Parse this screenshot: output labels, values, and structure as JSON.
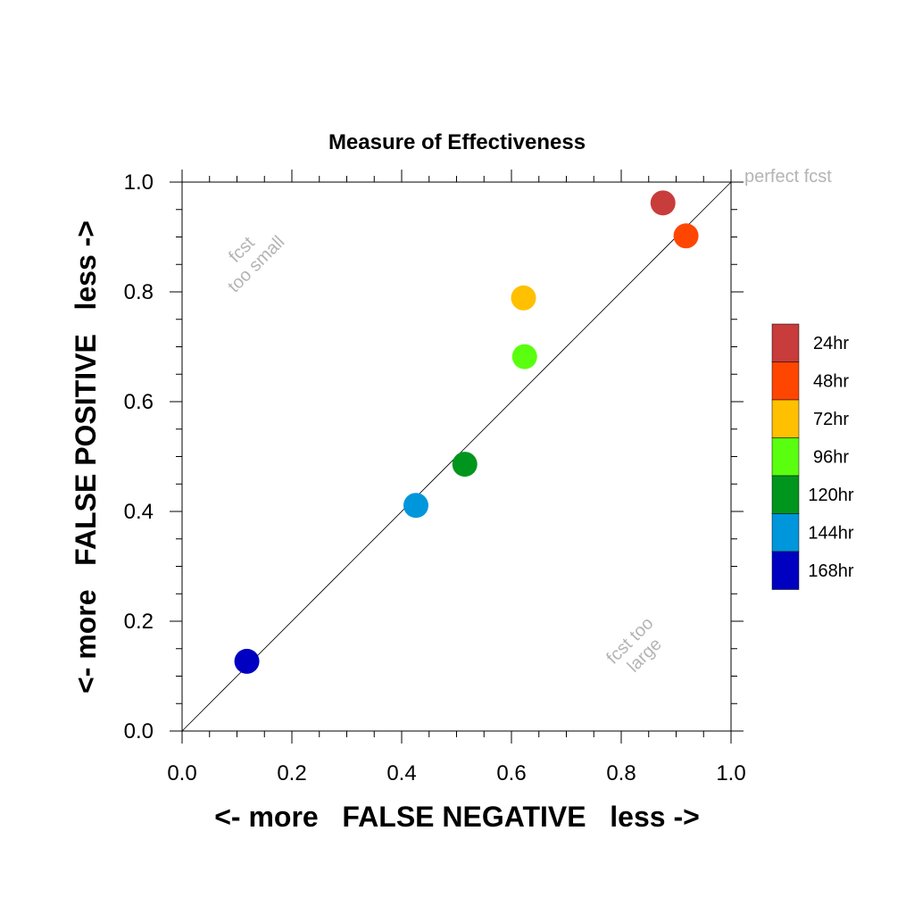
{
  "chart_data": {
    "type": "scatter",
    "title": "Measure of Effectiveness",
    "xlabel": "<- more   FALSE NEGATIVE   less ->",
    "ylabel": "<- more   FALSE POSITIVE   less ->",
    "xlim": [
      0.0,
      1.0
    ],
    "ylim": [
      0.0,
      1.0
    ],
    "x_ticks": [
      "0.0",
      "0.2",
      "0.4",
      "0.6",
      "0.8",
      "1.0"
    ],
    "y_ticks": [
      "0.0",
      "0.2",
      "0.4",
      "0.6",
      "0.8",
      "1.0"
    ],
    "grid": false,
    "legend_position": "right",
    "reference_line": {
      "from": [
        0,
        0
      ],
      "to": [
        1,
        1
      ],
      "label": "perfect fcst"
    },
    "annotations": {
      "upper_left": [
        "fcst",
        "too small"
      ],
      "lower_right": [
        "fcst too",
        "large"
      ]
    },
    "series": [
      {
        "name": "168hr",
        "color": "#0000c0",
        "x": 0.118,
        "y": 0.127
      },
      {
        "name": "144hr",
        "color": "#0096dc",
        "x": 0.426,
        "y": 0.411
      },
      {
        "name": "120hr",
        "color": "#00961e",
        "x": 0.515,
        "y": 0.486
      },
      {
        "name": "96hr",
        "color": "#5aff10",
        "x": 0.624,
        "y": 0.682
      },
      {
        "name": "72hr",
        "color": "#ffc000",
        "x": 0.622,
        "y": 0.789
      },
      {
        "name": "48hr",
        "color": "#ff4600",
        "x": 0.918,
        "y": 0.902
      },
      {
        "name": "24hr",
        "color": "#c83c3c",
        "x": 0.876,
        "y": 0.962
      }
    ]
  }
}
